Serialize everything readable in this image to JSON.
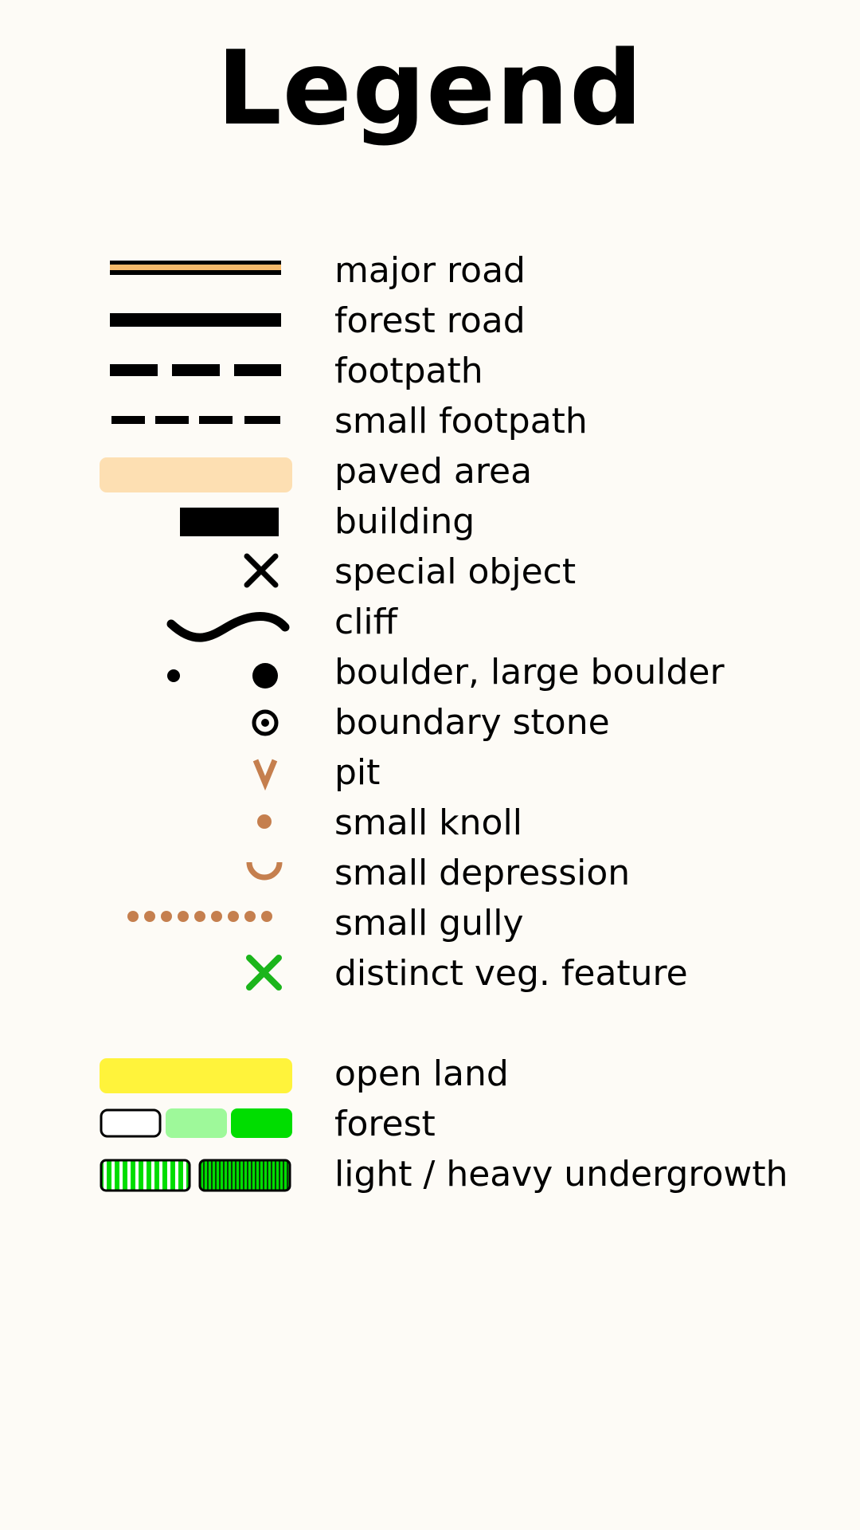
{
  "title": "Legend",
  "colors": {
    "background": "#fdfbf6",
    "ink": "#000000",
    "road_fill": "#f5b96a",
    "paved": "#fddfb2",
    "landform_brown": "#c57f4e",
    "vegetation_green": "#1bb51b",
    "open_land": "#fff33b",
    "forest_light": "#9ef99a",
    "forest_dark": "#00dd00",
    "undergrowth_green": "#00dd00"
  },
  "items": [
    {
      "icon": "major-road-symbol",
      "label": "major road"
    },
    {
      "icon": "forest-road-symbol",
      "label": "forest road"
    },
    {
      "icon": "footpath-symbol",
      "label": "footpath"
    },
    {
      "icon": "small-footpath-symbol",
      "label": "small footpath"
    },
    {
      "icon": "paved-area-symbol",
      "label": "paved area"
    },
    {
      "icon": "building-symbol",
      "label": "building"
    },
    {
      "icon": "special-object-x-icon",
      "label": "special object"
    },
    {
      "icon": "cliff-symbol",
      "label": "cliff"
    },
    {
      "icon": "boulder-dots-icon",
      "label": "boulder, large boulder"
    },
    {
      "icon": "boundary-stone-icon",
      "label": "boundary stone"
    },
    {
      "icon": "pit-v-icon",
      "label": "pit"
    },
    {
      "icon": "small-knoll-dot-icon",
      "label": "small knoll"
    },
    {
      "icon": "small-depression-arc-icon",
      "label": "small depression"
    },
    {
      "icon": "small-gully-dotted-line-icon",
      "label": "small gully"
    },
    {
      "icon": "vegetation-feature-x-icon",
      "label": "distinct veg. feature"
    },
    {
      "icon": "open-land-swatch",
      "label": "open land"
    },
    {
      "icon": "forest-swatches",
      "label": "forest"
    },
    {
      "icon": "undergrowth-swatches",
      "label": "light / heavy undergrowth"
    }
  ]
}
